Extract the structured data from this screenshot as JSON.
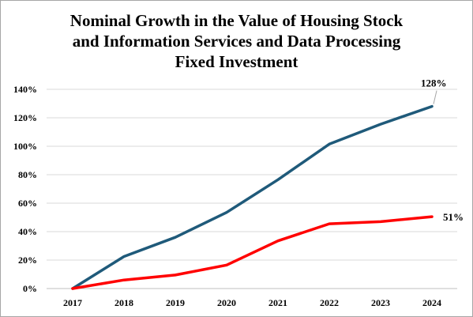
{
  "chart_data": {
    "type": "line",
    "title_lines": [
      "Nominal Growth in the Value of Housing Stock",
      "and Information Services and Data Processing",
      "Fixed Investment"
    ],
    "title": "Nominal Growth in the Value of Housing Stock and Information Services and Data Processing Fixed Investment",
    "xlabel": "",
    "ylabel": "",
    "categories": [
      "2017",
      "2018",
      "2019",
      "2020",
      "2021",
      "2022",
      "2023",
      "2024"
    ],
    "ylim": [
      0,
      140
    ],
    "yticks": [
      0,
      20,
      40,
      60,
      80,
      100,
      120,
      140
    ],
    "ytick_labels": [
      "0%",
      "20%",
      "40%",
      "60%",
      "80%",
      "100%",
      "120%",
      "140%"
    ],
    "grid": true,
    "legend": "none",
    "series": [
      {
        "color": "#1f5a7a",
        "values": [
          0,
          22.5,
          36,
          53.5,
          76.5,
          101.5,
          115.5,
          128
        ],
        "end_label": "128%"
      },
      {
        "color": "#ff0000",
        "values": [
          0,
          6,
          9.5,
          16.5,
          33.5,
          45.5,
          47,
          50.5
        ],
        "end_label": "51%"
      }
    ]
  }
}
